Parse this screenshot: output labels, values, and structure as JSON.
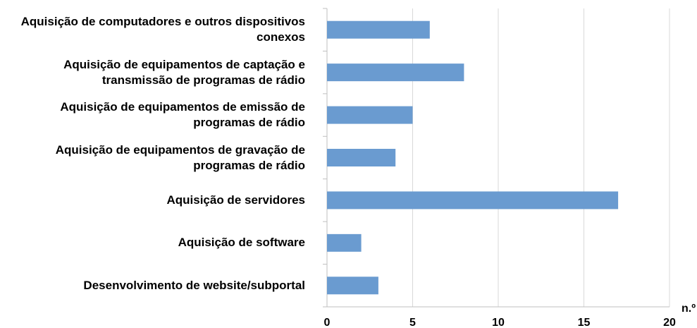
{
  "chart_data": {
    "type": "bar",
    "orientation": "horizontal",
    "categories": [
      "Aquisição de computadores e outros dispositivos\nconexos",
      "Aquisição de equipamentos de captação e\ntransmissão de programas de rádio",
      "Aquisição de equipamentos de emissão de\nprogramas de rádio",
      "Aquisição de equipamentos de gravação de\nprogramas de rádio",
      "Aquisição de servidores",
      "Aquisição de software",
      "Desenvolvimento de website/subportal"
    ],
    "values": [
      6,
      8,
      5,
      4,
      17,
      2,
      3
    ],
    "color": "#6a9bd0",
    "x_label": "n.º",
    "xlim": [
      0,
      20
    ],
    "xticks": [
      0,
      5,
      10,
      15,
      20
    ],
    "grid": true
  }
}
